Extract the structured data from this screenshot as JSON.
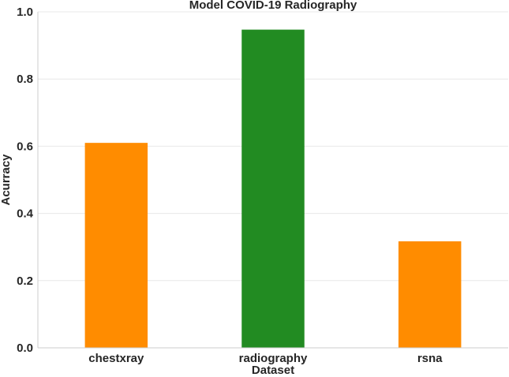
{
  "chart_data": {
    "type": "bar",
    "title": "Model COVID-19 Radiography",
    "xlabel": "Dataset",
    "ylabel": "Acurracy",
    "categories": [
      "chestxray",
      "radiography",
      "rsna"
    ],
    "values": [
      0.61,
      0.947,
      0.317
    ],
    "bar_colors": [
      "#ff8c00",
      "#228b22",
      "#ff8c00"
    ],
    "ylim": [
      0,
      1.0
    ],
    "yticks": [
      0.0,
      0.2,
      0.4,
      0.6,
      0.8,
      1.0
    ],
    "ytick_labels": [
      "0.0",
      "0.2",
      "0.4",
      "0.6",
      "0.8",
      "1.0"
    ],
    "grid": "horizontal",
    "legend": "none"
  }
}
